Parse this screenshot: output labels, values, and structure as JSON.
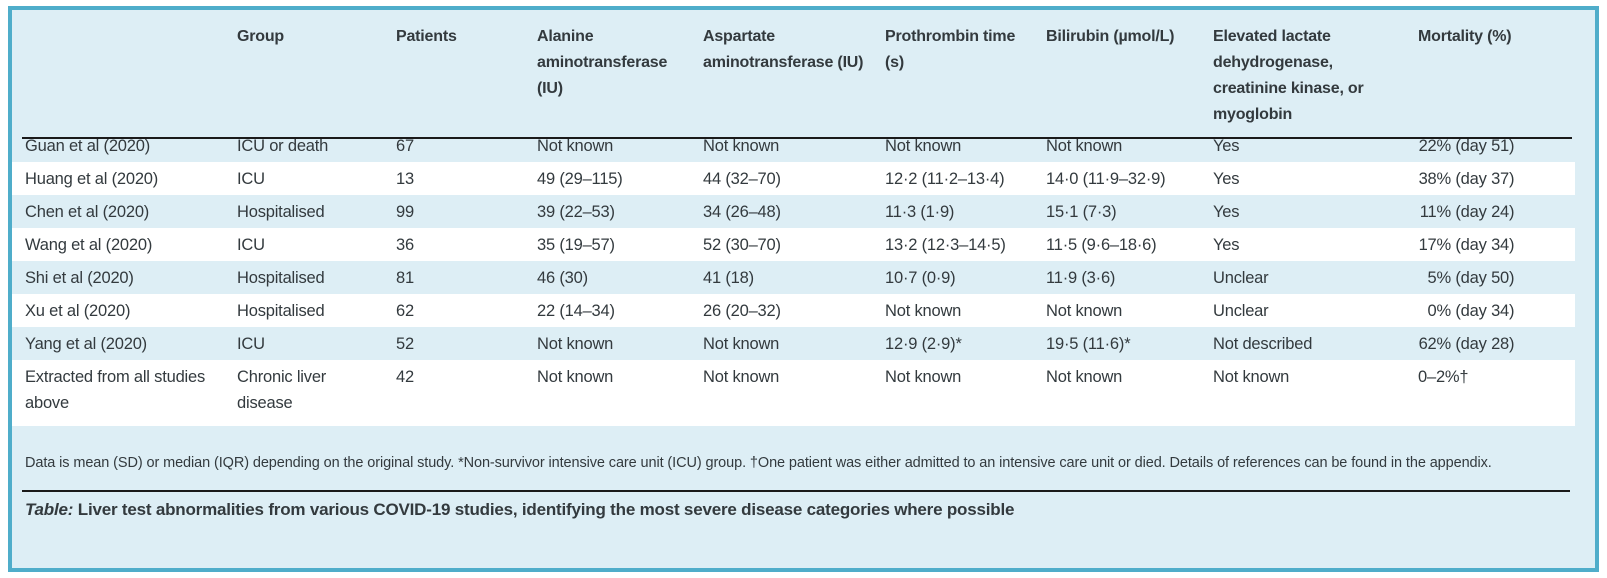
{
  "panel": {
    "background_color": "#ddeef5",
    "border_color": "#4fadca",
    "stripe_color": "#ffffff",
    "text_color": "#333a3e"
  },
  "table": {
    "columns": [
      {
        "key": "study",
        "label": ""
      },
      {
        "key": "group",
        "label": "Group"
      },
      {
        "key": "patients",
        "label": "Patients"
      },
      {
        "key": "alt",
        "label": "Alanine aminotransferase (IU)"
      },
      {
        "key": "ast",
        "label": "Aspartate aminotransferase (IU)"
      },
      {
        "key": "pt",
        "label": "Prothrombin time (s)"
      },
      {
        "key": "bilirubin",
        "label": "Bilirubin (µmol/L)"
      },
      {
        "key": "ldh",
        "label": "Elevated lactate dehydrogenase, creatinine kinase, or myoglobin"
      },
      {
        "key": "mortality",
        "label": "Mortality (%)"
      }
    ],
    "rows": [
      {
        "study": "Guan et al (2020)",
        "group": "ICU or death",
        "patients": "67",
        "alt": "Not known",
        "ast": "Not known",
        "pt": "Not known",
        "bilirubin": "Not known",
        "ldh": "Yes",
        "mortality": {
          "pct": "22%",
          "rest": " (day 51)"
        }
      },
      {
        "study": "Huang et al (2020)",
        "group": "ICU",
        "patients": "13",
        "alt": "49 (29–115)",
        "ast": "44 (32–70)",
        "pt": "12·2 (11·2–13·4)",
        "bilirubin": "14·0 (11·9–32·9)",
        "ldh": "Yes",
        "mortality": {
          "pct": "38%",
          "rest": " (day 37)"
        }
      },
      {
        "study": "Chen et al (2020)",
        "group": "Hospitalised",
        "patients": "99",
        "alt": "39 (22–53)",
        "ast": "34 (26–48)",
        "pt": "11·3 (1·9)",
        "bilirubin": "15·1 (7·3)",
        "ldh": "Yes",
        "mortality": {
          "pct": "11%",
          "rest": " (day 24)"
        }
      },
      {
        "study": "Wang et al (2020)",
        "group": "ICU",
        "patients": "36",
        "alt": "35 (19–57)",
        "ast": "52 (30–70)",
        "pt": "13·2 (12·3–14·5)",
        "bilirubin": "11·5 (9·6–18·6)",
        "ldh": "Yes",
        "mortality": {
          "pct": "17%",
          "rest": " (day 34)"
        }
      },
      {
        "study": "Shi et al (2020)",
        "group": "Hospitalised",
        "patients": "81",
        "alt": "46 (30)",
        "ast": "41 (18)",
        "pt": "10·7 (0·9)",
        "bilirubin": "11·9 (3·6)",
        "ldh": "Unclear",
        "mortality": {
          "pct": "5%",
          "rest": " (day 50)"
        }
      },
      {
        "study": "Xu et al (2020)",
        "group": "Hospitalised",
        "patients": "62",
        "alt": "22 (14–34)",
        "ast": "26 (20–32)",
        "pt": "Not known",
        "bilirubin": "Not known",
        "ldh": "Unclear",
        "mortality": {
          "pct": "0%",
          "rest": " (day 34)"
        }
      },
      {
        "study": "Yang et al (2020)",
        "group": "ICU",
        "patients": "52",
        "alt": "Not known",
        "ast": "Not known",
        "pt": "12·9 (2·9)*",
        "bilirubin": "19·5 (11·6)*",
        "ldh": "Not described",
        "mortality": {
          "pct": "62%",
          "rest": " (day 28)"
        }
      },
      {
        "study": "Extracted from all studies above",
        "group": "Chronic liver disease",
        "patients": "42",
        "alt": "Not known",
        "ast": "Not known",
        "pt": "Not known",
        "bilirubin": "Not known",
        "ldh": "Not known",
        "mortality": {
          "pct": "0–2%",
          "rest": "†"
        }
      }
    ],
    "footnote": "Data is mean (SD) or median (IQR) depending on the original study. *Non-survivor intensive care unit (ICU) group. †One patient was either admitted to an intensive care unit or died. Details of references can be found in the appendix.",
    "caption_label": "Table:",
    "caption_text": " Liver test abnormalities from various COVID-19 studies, identifying the most severe disease categories where possible"
  }
}
